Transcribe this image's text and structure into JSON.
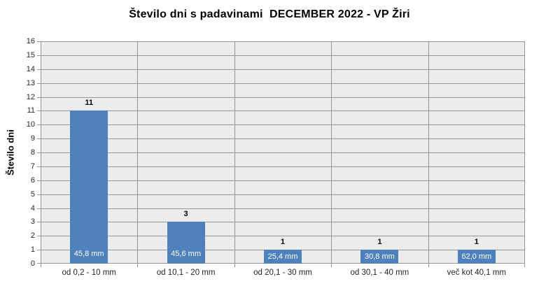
{
  "chart_data": {
    "type": "bar",
    "title": "Število dni s padavinami  DECEMBER 2022 - VP Žiri",
    "ylabel": "Število dni",
    "xlabel": "",
    "categories": [
      "od 0,2 - 10 mm",
      "od 10,1 - 20 mm",
      "od 20,1 - 30 mm",
      "od 30,1 - 40 mm",
      "več kot 40,1 mm"
    ],
    "values": [
      11,
      3,
      1,
      1,
      1
    ],
    "bar_value_labels": [
      "11",
      "3",
      "1",
      "1",
      "1"
    ],
    "bar_inner_labels": [
      "45,8 mm",
      "45,6 mm",
      "25,4 mm",
      "30,8 mm",
      "62,0 mm"
    ],
    "ylim": [
      0,
      16
    ],
    "ytick_step": 1,
    "grid": {
      "horizontal": true,
      "vertical_category_boundaries": true
    },
    "legend": "none",
    "plot_background": "#ECECEC",
    "colors": {
      "bar": "#4F81BD",
      "gridline": "#969696",
      "inner_label_text": "#FFFFFF",
      "axis_text": "#262626",
      "title_text": "#000000"
    }
  }
}
